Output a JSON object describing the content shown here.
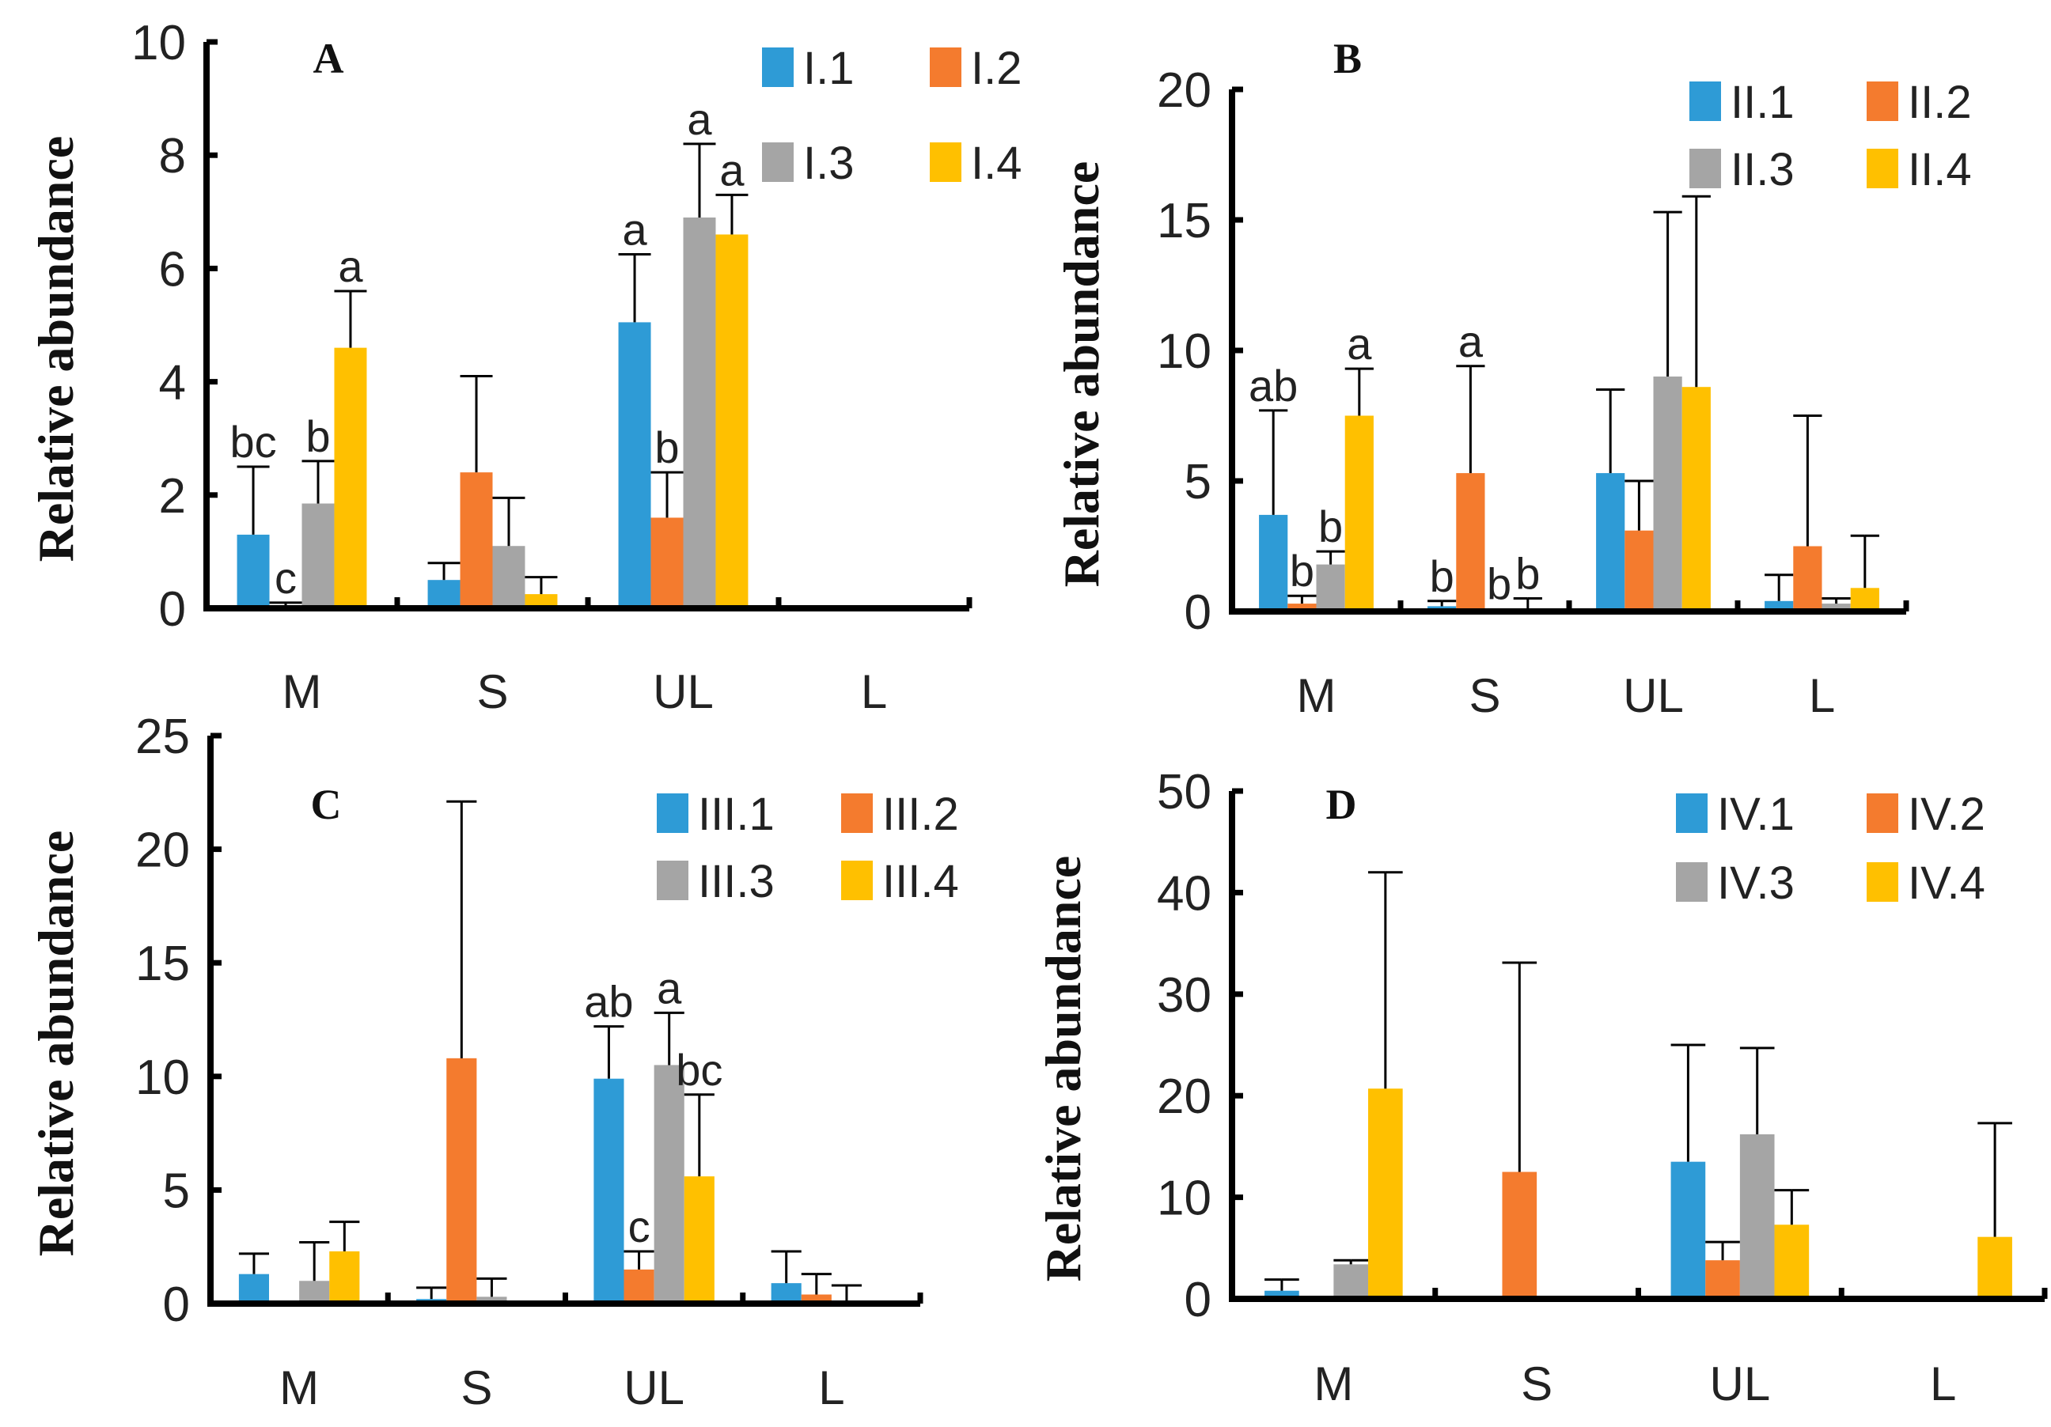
{
  "chart_data": [
    {
      "type": "bar",
      "panel_label": "A",
      "ylabel": "Relative abundance",
      "ylim": [
        0,
        10
      ],
      "yticks": [
        "0",
        "2",
        "4",
        "6",
        "8",
        "10"
      ],
      "ytick_values": [
        0,
        2,
        4,
        6,
        8,
        10
      ],
      "categories": [
        "M",
        "S",
        "UL",
        "L"
      ],
      "legend": "top-right",
      "series": [
        {
          "name": "I.1",
          "color": "#2E9BD6",
          "values": [
            1.3,
            0.5,
            5.05,
            0
          ],
          "error_top": [
            2.5,
            0.8,
            6.25,
            0
          ],
          "letters": [
            "bc",
            null,
            "a",
            null
          ]
        },
        {
          "name": "I.2",
          "color": "#F47B2E",
          "values": [
            0.05,
            2.4,
            1.6,
            0.05
          ],
          "error_top": [
            0.1,
            4.1,
            2.4,
            0.05
          ],
          "letters": [
            "c",
            null,
            "b",
            null
          ]
        },
        {
          "name": "I.3",
          "color": "#A5A5A5",
          "values": [
            1.85,
            1.1,
            6.9,
            0
          ],
          "error_top": [
            2.6,
            1.95,
            8.2,
            0
          ],
          "letters": [
            "b",
            null,
            "a",
            null
          ]
        },
        {
          "name": "I.4",
          "color": "#FFC000",
          "values": [
            4.6,
            0.25,
            6.6,
            0
          ],
          "error_top": [
            5.6,
            0.55,
            7.3,
            0
          ],
          "letters": [
            "a",
            null,
            "a",
            null
          ]
        }
      ]
    },
    {
      "type": "bar",
      "panel_label": "B",
      "ylabel": "Relative abundance",
      "ylim": [
        0,
        20
      ],
      "yticks": [
        "0",
        "5",
        "10",
        "15",
        "20"
      ],
      "ytick_values": [
        0,
        5,
        10,
        15,
        20
      ],
      "categories": [
        "M",
        "S",
        "UL",
        "L"
      ],
      "legend": "top-right",
      "series": [
        {
          "name": "II.1",
          "color": "#2E9BD6",
          "values": [
            3.7,
            0.2,
            5.3,
            0.4
          ],
          "error_top": [
            7.7,
            0.4,
            8.5,
            1.4
          ],
          "letters": [
            "ab",
            "b",
            null,
            null
          ]
        },
        {
          "name": "II.2",
          "color": "#F47B2E",
          "values": [
            0.3,
            5.3,
            3.1,
            2.5
          ],
          "error_top": [
            0.6,
            9.4,
            5.0,
            7.5
          ],
          "letters": [
            "b",
            "a",
            null,
            null
          ]
        },
        {
          "name": "II.3",
          "color": "#A5A5A5",
          "values": [
            1.8,
            0.1,
            9.0,
            0.3
          ],
          "error_top": [
            2.3,
            0.1,
            15.3,
            0.5
          ],
          "letters": [
            "b",
            "b",
            null,
            null
          ]
        },
        {
          "name": "II.4",
          "color": "#FFC000",
          "values": [
            7.5,
            0.05,
            8.6,
            0.9
          ],
          "error_top": [
            9.3,
            0.5,
            15.9,
            2.9
          ],
          "letters": [
            "a",
            "b",
            null,
            null
          ]
        }
      ]
    },
    {
      "type": "bar",
      "panel_label": "C",
      "ylabel": "Relative abundance",
      "ylim": [
        0,
        25
      ],
      "yticks": [
        "0",
        "5",
        "10",
        "15",
        "20",
        "25"
      ],
      "ytick_values": [
        0,
        5,
        10,
        15,
        20,
        25
      ],
      "categories": [
        "M",
        "S",
        "UL",
        "L"
      ],
      "legend": "top-right",
      "series": [
        {
          "name": "III.1",
          "color": "#2E9BD6",
          "values": [
            1.3,
            0.2,
            9.9,
            0.9
          ],
          "error_top": [
            2.2,
            0.7,
            12.2,
            2.3
          ],
          "letters": [
            null,
            null,
            "ab",
            null
          ]
        },
        {
          "name": "III.2",
          "color": "#F47B2E",
          "values": [
            0,
            10.8,
            1.5,
            0.4
          ],
          "error_top": [
            0,
            22.1,
            2.3,
            1.3
          ],
          "letters": [
            null,
            null,
            "c",
            null
          ]
        },
        {
          "name": "III.3",
          "color": "#A5A5A5",
          "values": [
            1.0,
            0.3,
            10.5,
            0.1
          ],
          "error_top": [
            2.7,
            1.1,
            12.8,
            0.8
          ],
          "letters": [
            null,
            null,
            "a",
            null
          ]
        },
        {
          "name": "III.4",
          "color": "#FFC000",
          "values": [
            2.3,
            0.1,
            5.6,
            0
          ],
          "error_top": [
            3.6,
            0.1,
            9.2,
            0
          ],
          "letters": [
            null,
            null,
            "bc",
            null
          ]
        }
      ]
    },
    {
      "type": "bar",
      "panel_label": "D",
      "ylabel": "Relative abundance",
      "ylim": [
        0,
        50
      ],
      "yticks": [
        "0",
        "10",
        "20",
        "30",
        "40",
        "50"
      ],
      "ytick_values": [
        0,
        10,
        20,
        30,
        40,
        50
      ],
      "categories": [
        "M",
        "S",
        "UL",
        "L"
      ],
      "legend": "top-right",
      "series": [
        {
          "name": "IV.1",
          "color": "#2E9BD6",
          "values": [
            0.8,
            0,
            13.5,
            0
          ],
          "error_top": [
            1.9,
            0,
            25,
            0
          ],
          "letters": [
            null,
            null,
            null,
            null
          ]
        },
        {
          "name": "IV.2",
          "color": "#F47B2E",
          "values": [
            0,
            12.5,
            3.8,
            0.1
          ],
          "error_top": [
            0,
            33.1,
            5.6,
            0.1
          ],
          "letters": [
            null,
            null,
            null,
            null
          ]
        },
        {
          "name": "IV.3",
          "color": "#A5A5A5",
          "values": [
            3.4,
            0,
            16.2,
            0
          ],
          "error_top": [
            3.8,
            0,
            24.7,
            0
          ],
          "letters": [
            null,
            null,
            null,
            null
          ]
        },
        {
          "name": "IV.4",
          "color": "#FFC000",
          "values": [
            20.7,
            0,
            7.3,
            6.1
          ],
          "error_top": [
            42,
            0,
            10.7,
            17.3
          ],
          "letters": [
            null,
            null,
            null,
            null
          ]
        }
      ]
    }
  ]
}
